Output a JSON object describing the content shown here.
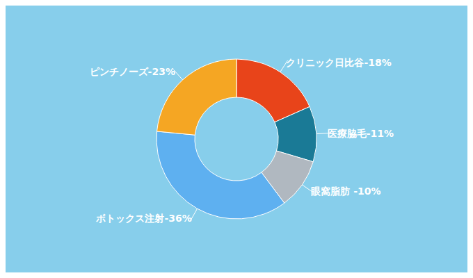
{
  "chart_data": {
    "type": "pie",
    "categories": [
      "クリニック日比谷-18%",
      "医療脇毛-11%",
      "眼窩脂肪 -10%",
      "ボトックス注射-36%",
      "ピンチノーズ-23%"
    ],
    "values": [
      18,
      11,
      10,
      36,
      23
    ],
    "colors": [
      "#E8441A",
      "#1A7A96",
      "#B0B8C0",
      "#5EB0F0",
      "#F5A623"
    ]
  }
}
